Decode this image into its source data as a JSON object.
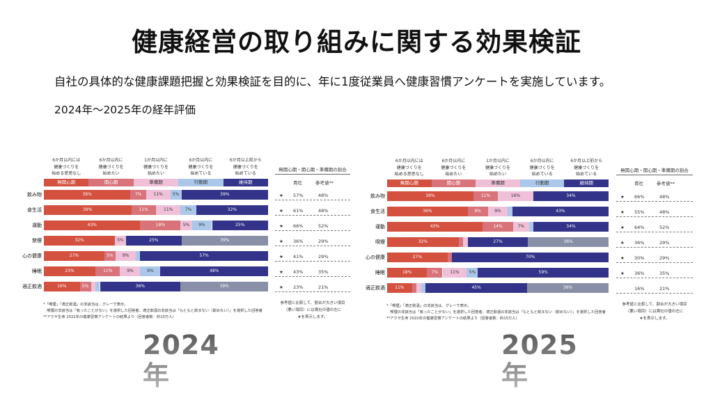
{
  "title": "健康経営の取り組みに関する効果検証",
  "subtitle": "自社の具体的な健康課題把握と効果検証を目的に、年に1度従業員へ健康習慣アンケートを実施しています。",
  "period": "2024年～2025年の経年評価",
  "colors": {
    "無関心期": "#d4513f",
    "関心期": "#d9737a",
    "準備期": "#efc0d8",
    "行動期": "#abc8ea",
    "維持期": "#33338a",
    "非該当": "#8a8fa8"
  },
  "chart_data": [
    {
      "type": "bar",
      "stacked": "horizontal-100%",
      "year_label": "2024年",
      "stage_descriptions": [
        "6か月以内には\n健康づくりを\n始める意思なし",
        "6か月以内に\n健康づくりを\n始めたい",
        "1か月以内に\n健康づくりを\n始めたい",
        "6か月以内に\n健康づくりを\n始めている",
        "6か月以上前から\n健康づくりを\n始めている"
      ],
      "stages": [
        "無関心期",
        "関心期",
        "準備期",
        "行動期",
        "維持期"
      ],
      "categories": [
        "飲み物",
        "食生活",
        "運動",
        "禁煙",
        "心の健康",
        "睡眠",
        "適正飲酒"
      ],
      "series": [
        {
          "name": "無関心期",
          "values": [
            39,
            39,
            43,
            32,
            27,
            23,
            16
          ]
        },
        {
          "name": "関心期",
          "values": [
            7,
            11,
            18,
            0,
            5,
            11,
            5
          ]
        },
        {
          "name": "準備期",
          "values": [
            11,
            11,
            5,
            5,
            9,
            9,
            2
          ]
        },
        {
          "name": "行動期",
          "values": [
            5,
            7,
            9,
            0,
            2,
            9,
            2
          ]
        },
        {
          "name": "維持期",
          "values": [
            39,
            32,
            25,
            25,
            57,
            48,
            36
          ]
        },
        {
          "name": "非該当",
          "values": [
            0,
            0,
            0,
            39,
            0,
            0,
            39
          ]
        }
      ],
      "table": {
        "header": "無関心期・関心期・準備期の割合",
        "col1": "貴社",
        "col2": "参考値**",
        "rows": [
          {
            "star": "★",
            "own": "57%",
            "ref": "48%"
          },
          {
            "star": "★",
            "own": "61%",
            "ref": "48%"
          },
          {
            "star": "★",
            "own": "66%",
            "ref": "52%"
          },
          {
            "star": "★",
            "own": "36%",
            "ref": "29%"
          },
          {
            "star": "★",
            "own": "41%",
            "ref": "29%"
          },
          {
            "star": "★",
            "own": "43%",
            "ref": "35%"
          },
          {
            "star": "★",
            "own": "23%",
            "ref": "21%"
          }
        ],
        "note": "参考値と比較して、割合が大きい項目\n（悪い項目）には貴社の値の左に\n★を表示します。"
      },
      "notes": [
        "*「喫煙」「適正飲酒」の非該当は、グレーで表示。",
        "　喫煙の非該当は「吸ったことがない」を選択した回答者、適正飲酒の非該当は「もともと飲まない（飲めない）」を選択した回答者",
        "**アクサ生命 2022年の健康習慣アンケートの結果より（回答者数：約15万人）"
      ]
    },
    {
      "type": "bar",
      "stacked": "horizontal-100%",
      "year_label": "2025年",
      "stage_descriptions": [
        "6か月以内には\n健康づくりを\n始める意思なし",
        "6か月以内に\n健康づくりを\n始めたい",
        "1か月以内に\n健康づくりを\n始めたい",
        "6か月以内に\n健康づくりを\n始めている",
        "6か月以上前から\n健康づくりを\n始めている"
      ],
      "stages": [
        "無関心期",
        "関心期",
        "準備期",
        "行動期",
        "維持期"
      ],
      "categories": [
        "飲み物",
        "食生活",
        "運動",
        "喫煙",
        "心の健康",
        "睡眠",
        "適正飲酒"
      ],
      "series": [
        {
          "name": "無関心期",
          "values": [
            39,
            36,
            43,
            32,
            27,
            18,
            11
          ]
        },
        {
          "name": "関心期",
          "values": [
            11,
            9,
            14,
            2,
            2,
            7,
            2
          ]
        },
        {
          "name": "準備期",
          "values": [
            16,
            9,
            7,
            2,
            0,
            11,
            2
          ]
        },
        {
          "name": "行動期",
          "values": [
            0,
            2,
            2,
            0,
            0,
            5,
            2
          ]
        },
        {
          "name": "維持期",
          "values": [
            34,
            43,
            34,
            27,
            70,
            59,
            45
          ]
        },
        {
          "name": "非該当",
          "values": [
            0,
            0,
            0,
            36,
            0,
            0,
            36
          ]
        }
      ],
      "table": {
        "header": "無関心期・関心期・準備期の割合",
        "col1": "貴社",
        "col2": "参考値**",
        "rows": [
          {
            "star": "★",
            "own": "66%",
            "ref": "48%"
          },
          {
            "star": "★",
            "own": "55%",
            "ref": "48%"
          },
          {
            "star": "★",
            "own": "64%",
            "ref": "52%"
          },
          {
            "star": "★",
            "own": "36%",
            "ref": "29%"
          },
          {
            "star": "★",
            "own": "30%",
            "ref": "29%"
          },
          {
            "star": "★",
            "own": "36%",
            "ref": "35%"
          },
          {
            "star": "",
            "own": "16%",
            "ref": "21%"
          }
        ],
        "note": "参考値と比較して、割合が大きい項目\n（悪い項目）には貴社の値の左に\n★を表示します。"
      },
      "notes": [
        "*「喫煙」「適正飲酒」の非該当は、グレーで表示。",
        "　喫煙の非該当は「吸ったことがない」を選択した回答者、適正飲酒の非該当は「もともと飲まない（飲めない）」を選択した回答者",
        "**アクサ生命 2022年の健康習慣アンケートの結果より（回答者数：約15万人）"
      ]
    }
  ]
}
